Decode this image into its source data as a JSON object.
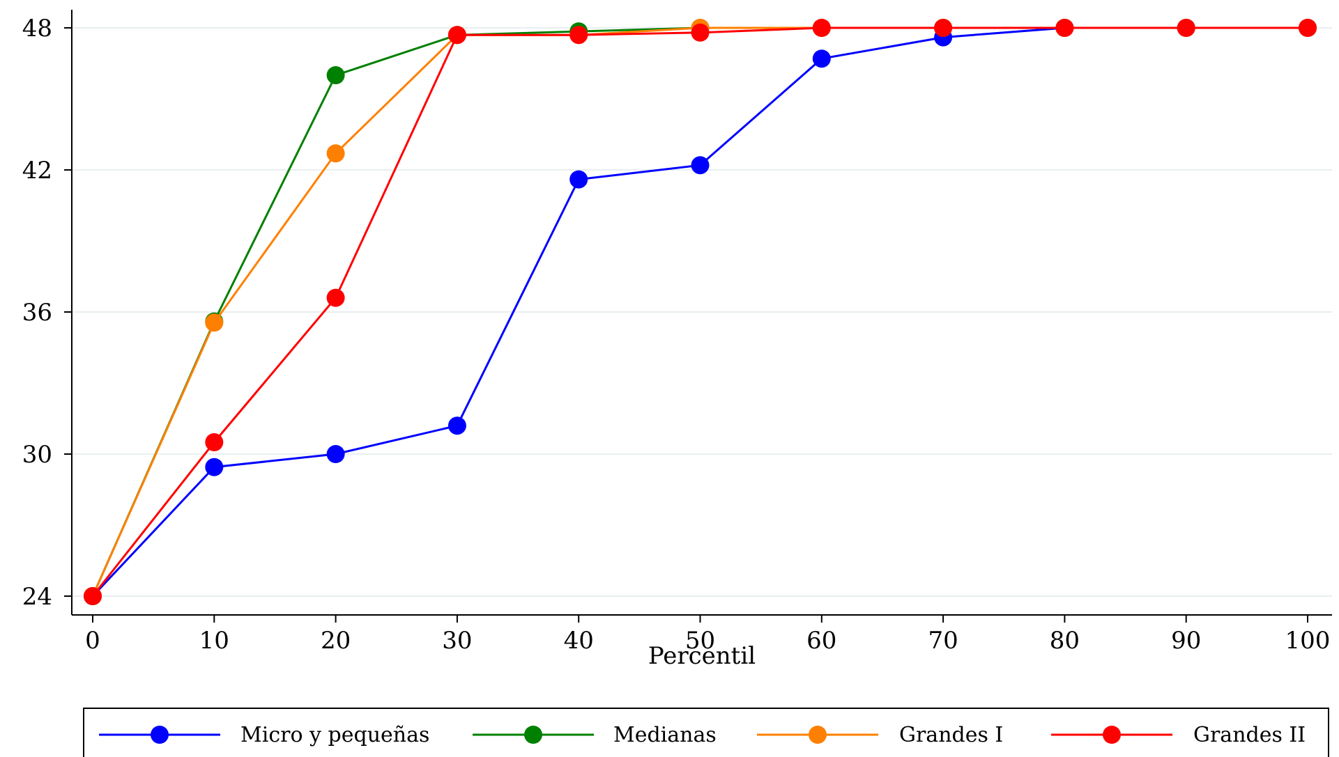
{
  "chart_data": {
    "type": "line",
    "title": "",
    "xlabel": "Percentil",
    "ylabel": "",
    "x": [
      0,
      10,
      20,
      30,
      40,
      50,
      60,
      70,
      80,
      90,
      100
    ],
    "xticks": [
      "0",
      "10",
      "20",
      "30",
      "40",
      "50",
      "60",
      "70",
      "80",
      "90",
      "100"
    ],
    "yticks": [
      "24",
      "30",
      "36",
      "42",
      "48"
    ],
    "ytick_values": [
      24,
      30,
      36,
      42,
      48
    ],
    "xlim": [
      0,
      100
    ],
    "ylim": [
      24,
      48
    ],
    "grid": true,
    "legend_position": "bottom",
    "series": [
      {
        "name": "Micro y pequeñas",
        "color": "#0000ff",
        "values": [
          24,
          29.45,
          30,
          31.2,
          41.6,
          42.2,
          46.7,
          47.6,
          48,
          48,
          48
        ]
      },
      {
        "name": "Medianas",
        "color": "#008000",
        "values": [
          24,
          35.6,
          46,
          47.7,
          47.85,
          48,
          48,
          48,
          48,
          48,
          48
        ]
      },
      {
        "name": "Grandes I",
        "color": "#ff8000",
        "values": [
          24,
          35.55,
          42.7,
          47.7,
          47.7,
          48,
          48,
          48,
          48,
          48,
          48
        ]
      },
      {
        "name": "Grandes II",
        "color": "#ff0000",
        "values": [
          24,
          30.5,
          36.6,
          47.7,
          47.7,
          47.8,
          48,
          48,
          48,
          48,
          48
        ]
      }
    ]
  }
}
